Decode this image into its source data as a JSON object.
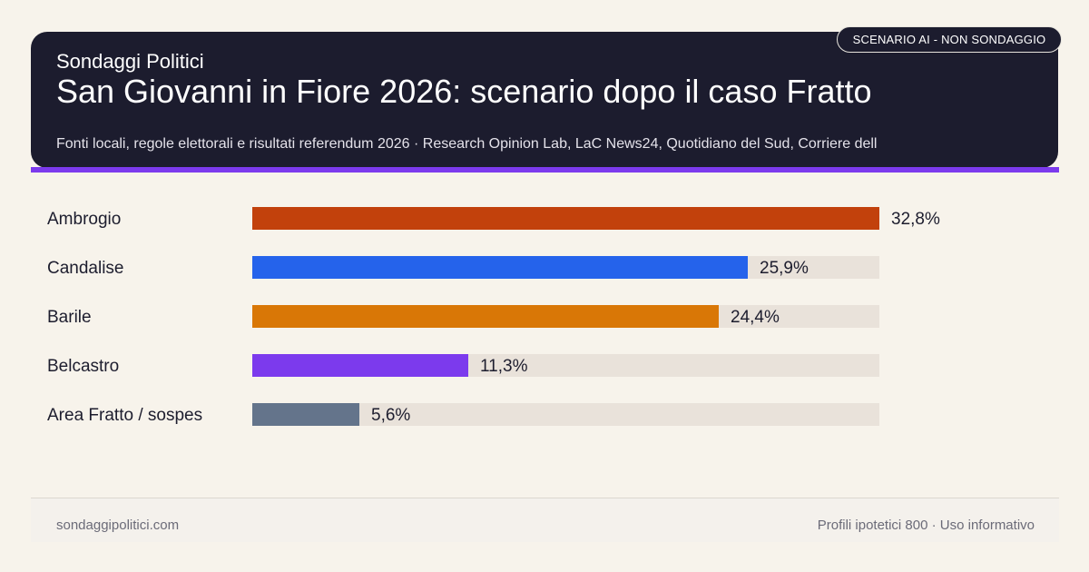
{
  "header": {
    "kicker": "Sondaggi Politici",
    "title": "San Giovanni in Fiore 2026: scenario dopo il caso Fratto",
    "sources": "Fonti locali, regole elettorali e risultati referendum 2026 · Research Opinion Lab, LaC News24, Quotidiano del Sud, Corriere dell",
    "badge": "SCENARIO AI - NON SONDAGGIO",
    "accent_color": "#7c3aed"
  },
  "chart_data": {
    "type": "bar",
    "orientation": "horizontal",
    "title": "San Giovanni in Fiore 2026: scenario dopo il caso Fratto",
    "categories": [
      "Ambrogio",
      "Candalise",
      "Barile",
      "Belcastro",
      "Area Fratto / sospes"
    ],
    "values": [
      32.8,
      25.9,
      24.4,
      11.3,
      5.6
    ],
    "value_labels": [
      "32,8%",
      "25,9%",
      "24,4%",
      "11,3%",
      "5,6%"
    ],
    "colors": [
      "#c2410c",
      "#2563eb",
      "#d97706",
      "#7c3aed",
      "#64748b"
    ],
    "xlim": [
      0,
      32.8
    ],
    "grid": false
  },
  "footer": {
    "site": "sondaggipolitici.com",
    "note": "Profili ipotetici 800 · Uso informativo"
  }
}
